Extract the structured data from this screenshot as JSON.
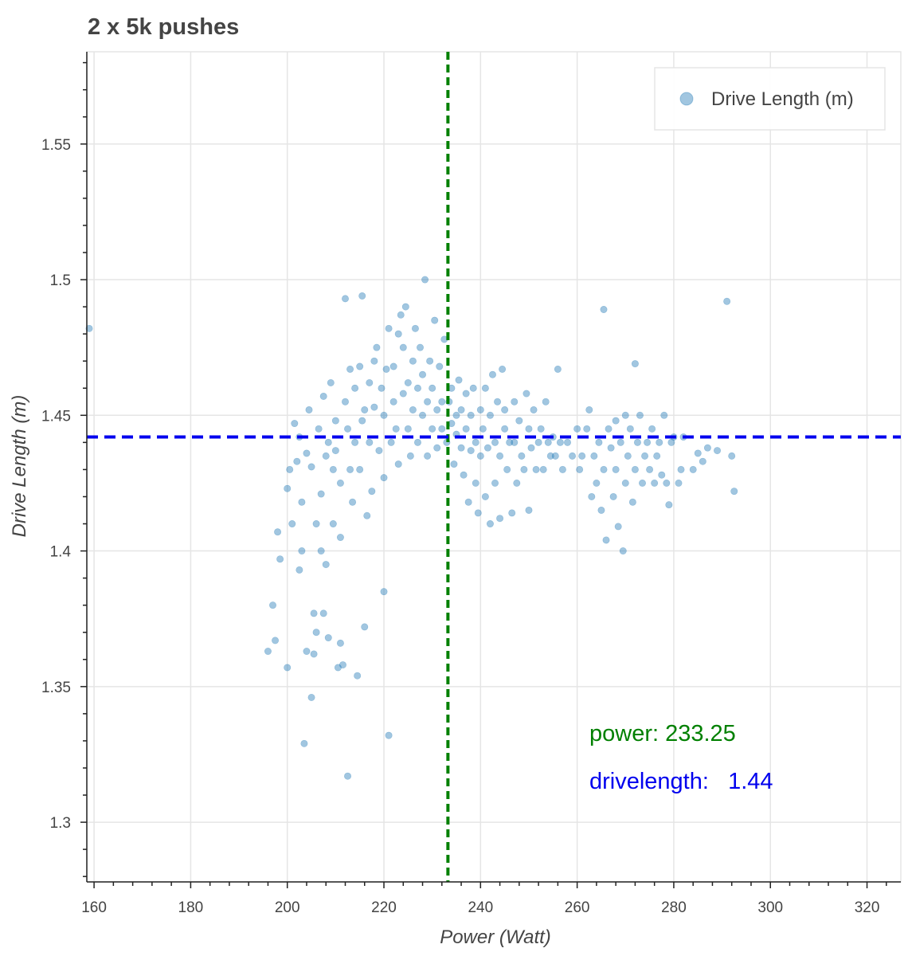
{
  "chart_data": {
    "type": "scatter",
    "title": "2 x 5k pushes",
    "xlabel": "Power (Watt)",
    "ylabel": "Drive Length (m)",
    "xlim": [
      158.5,
      327
    ],
    "ylim": [
      1.278,
      1.584
    ],
    "x_ticks": [
      160,
      180,
      200,
      220,
      240,
      260,
      280,
      300,
      320
    ],
    "x_tick_labels": [
      "160",
      "180",
      "200",
      "220",
      "240",
      "260",
      "280",
      "300",
      "320"
    ],
    "y_ticks": [
      1.3,
      1.35,
      1.4,
      1.45,
      1.5,
      1.55
    ],
    "y_tick_labels": [
      "1.3",
      "1.35",
      "1.4",
      "1.45",
      "1.5",
      "1.55"
    ],
    "grid": true,
    "legend": {
      "position": "top-right",
      "entries": [
        "Drive Length (m)"
      ]
    },
    "colors": {
      "points": "#1f77b4",
      "vline": "#008000",
      "hline": "#0000ee"
    },
    "reference_lines": {
      "vertical_x": 233.25,
      "horizontal_y": 1.442
    },
    "annotations": {
      "power": "power: 233.25",
      "drivelength": "drivelength:   1.44"
    },
    "series": [
      {
        "name": "Drive Length (m)",
        "points": [
          [
            159,
            1.482
          ],
          [
            196,
            1.363
          ],
          [
            197,
            1.38
          ],
          [
            197.5,
            1.367
          ],
          [
            198,
            1.407
          ],
          [
            198.5,
            1.397
          ],
          [
            200,
            1.357
          ],
          [
            200,
            1.423
          ],
          [
            200.5,
            1.43
          ],
          [
            201,
            1.41
          ],
          [
            201.5,
            1.447
          ],
          [
            202,
            1.433
          ],
          [
            202.5,
            1.442
          ],
          [
            202.5,
            1.393
          ],
          [
            203,
            1.418
          ],
          [
            203,
            1.4
          ],
          [
            203.5,
            1.329
          ],
          [
            204,
            1.436
          ],
          [
            204,
            1.363
          ],
          [
            204.5,
            1.452
          ],
          [
            205,
            1.431
          ],
          [
            205,
            1.346
          ],
          [
            205.5,
            1.377
          ],
          [
            205.5,
            1.362
          ],
          [
            206,
            1.41
          ],
          [
            206,
            1.37
          ],
          [
            206.5,
            1.445
          ],
          [
            207,
            1.421
          ],
          [
            207,
            1.4
          ],
          [
            207.5,
            1.377
          ],
          [
            207.5,
            1.457
          ],
          [
            208,
            1.435
          ],
          [
            208,
            1.395
          ],
          [
            208.5,
            1.44
          ],
          [
            208.5,
            1.368
          ],
          [
            209,
            1.462
          ],
          [
            209.5,
            1.43
          ],
          [
            209.5,
            1.41
          ],
          [
            210,
            1.437
          ],
          [
            210,
            1.448
          ],
          [
            210.5,
            1.357
          ],
          [
            211,
            1.425
          ],
          [
            211,
            1.405
          ],
          [
            211,
            1.366
          ],
          [
            211.5,
            1.358
          ],
          [
            212,
            1.493
          ],
          [
            212,
            1.455
          ],
          [
            212.5,
            1.317
          ],
          [
            212.5,
            1.445
          ],
          [
            213,
            1.467
          ],
          [
            213,
            1.43
          ],
          [
            213.5,
            1.418
          ],
          [
            214,
            1.44
          ],
          [
            214,
            1.46
          ],
          [
            214.5,
            1.354
          ],
          [
            215,
            1.468
          ],
          [
            215,
            1.43
          ],
          [
            215.5,
            1.448
          ],
          [
            215.5,
            1.494
          ],
          [
            216,
            1.372
          ],
          [
            216,
            1.452
          ],
          [
            216.5,
            1.413
          ],
          [
            217,
            1.462
          ],
          [
            217,
            1.44
          ],
          [
            217.5,
            1.422
          ],
          [
            218,
            1.453
          ],
          [
            218,
            1.47
          ],
          [
            218.5,
            1.475
          ],
          [
            219,
            1.437
          ],
          [
            219.5,
            1.46
          ],
          [
            220,
            1.385
          ],
          [
            220,
            1.427
          ],
          [
            220,
            1.45
          ],
          [
            220.5,
            1.467
          ],
          [
            221,
            1.332
          ],
          [
            221,
            1.482
          ],
          [
            221.5,
            1.44
          ],
          [
            222,
            1.455
          ],
          [
            222,
            1.468
          ],
          [
            222.5,
            1.445
          ],
          [
            223,
            1.48
          ],
          [
            223,
            1.432
          ],
          [
            223.5,
            1.487
          ],
          [
            224,
            1.458
          ],
          [
            224,
            1.475
          ],
          [
            224.5,
            1.49
          ],
          [
            225,
            1.445
          ],
          [
            225,
            1.462
          ],
          [
            225.5,
            1.435
          ],
          [
            226,
            1.47
          ],
          [
            226,
            1.452
          ],
          [
            226.5,
            1.482
          ],
          [
            227,
            1.46
          ],
          [
            227,
            1.44
          ],
          [
            227.5,
            1.475
          ],
          [
            228,
            1.45
          ],
          [
            228,
            1.465
          ],
          [
            228.5,
            1.5
          ],
          [
            229,
            1.455
          ],
          [
            229,
            1.435
          ],
          [
            229.5,
            1.47
          ],
          [
            230,
            1.445
          ],
          [
            230,
            1.46
          ],
          [
            230.5,
            1.485
          ],
          [
            231,
            1.452
          ],
          [
            231,
            1.438
          ],
          [
            231.5,
            1.468
          ],
          [
            232,
            1.455
          ],
          [
            232,
            1.445
          ],
          [
            232.5,
            1.478
          ],
          [
            233,
            1.44
          ],
          [
            233.5,
            1.455
          ],
          [
            234,
            1.447
          ],
          [
            234,
            1.46
          ],
          [
            234.5,
            1.432
          ],
          [
            235,
            1.45
          ],
          [
            235,
            1.443
          ],
          [
            235.5,
            1.463
          ],
          [
            236,
            1.438
          ],
          [
            236,
            1.452
          ],
          [
            236.5,
            1.428
          ],
          [
            237,
            1.445
          ],
          [
            237,
            1.458
          ],
          [
            237.5,
            1.418
          ],
          [
            238,
            1.437
          ],
          [
            238,
            1.45
          ],
          [
            238.5,
            1.46
          ],
          [
            239,
            1.425
          ],
          [
            239,
            1.44
          ],
          [
            239.5,
            1.414
          ],
          [
            240,
            1.452
          ],
          [
            240,
            1.435
          ],
          [
            240.5,
            1.445
          ],
          [
            241,
            1.46
          ],
          [
            241,
            1.42
          ],
          [
            241.5,
            1.438
          ],
          [
            242,
            1.45
          ],
          [
            242,
            1.41
          ],
          [
            242.5,
            1.465
          ],
          [
            243,
            1.44
          ],
          [
            243,
            1.425
          ],
          [
            243.5,
            1.455
          ],
          [
            244,
            1.412
          ],
          [
            244,
            1.435
          ],
          [
            244.5,
            1.467
          ],
          [
            245,
            1.445
          ],
          [
            245,
            1.452
          ],
          [
            245.5,
            1.43
          ],
          [
            246,
            1.44
          ],
          [
            246.5,
            1.414
          ],
          [
            247,
            1.455
          ],
          [
            247,
            1.44
          ],
          [
            247.5,
            1.425
          ],
          [
            248,
            1.448
          ],
          [
            248.5,
            1.435
          ],
          [
            249,
            1.43
          ],
          [
            249.5,
            1.458
          ],
          [
            250,
            1.445
          ],
          [
            250,
            1.415
          ],
          [
            250.5,
            1.438
          ],
          [
            251,
            1.452
          ],
          [
            251.5,
            1.43
          ],
          [
            252,
            1.44
          ],
          [
            252.5,
            1.445
          ],
          [
            253,
            1.43
          ],
          [
            253.5,
            1.455
          ],
          [
            254,
            1.44
          ],
          [
            254.5,
            1.435
          ],
          [
            255,
            1.442
          ],
          [
            255.5,
            1.435
          ],
          [
            256,
            1.467
          ],
          [
            256.5,
            1.44
          ],
          [
            257,
            1.43
          ],
          [
            258,
            1.44
          ],
          [
            259,
            1.435
          ],
          [
            260,
            1.445
          ],
          [
            260.5,
            1.43
          ],
          [
            261,
            1.435
          ],
          [
            262,
            1.445
          ],
          [
            262.5,
            1.452
          ],
          [
            263,
            1.42
          ],
          [
            263.5,
            1.435
          ],
          [
            264,
            1.425
          ],
          [
            264.5,
            1.44
          ],
          [
            265,
            1.415
          ],
          [
            265.5,
            1.489
          ],
          [
            265.5,
            1.43
          ],
          [
            266,
            1.404
          ],
          [
            266.5,
            1.445
          ],
          [
            267,
            1.438
          ],
          [
            267.5,
            1.42
          ],
          [
            268,
            1.448
          ],
          [
            268,
            1.43
          ],
          [
            268.5,
            1.409
          ],
          [
            269,
            1.44
          ],
          [
            269.5,
            1.4
          ],
          [
            270,
            1.45
          ],
          [
            270,
            1.425
          ],
          [
            270.5,
            1.435
          ],
          [
            271,
            1.445
          ],
          [
            271.5,
            1.418
          ],
          [
            272,
            1.469
          ],
          [
            272,
            1.43
          ],
          [
            272.5,
            1.44
          ],
          [
            273,
            1.45
          ],
          [
            273.5,
            1.425
          ],
          [
            274,
            1.435
          ],
          [
            274.5,
            1.44
          ],
          [
            275,
            1.43
          ],
          [
            275.5,
            1.445
          ],
          [
            276,
            1.425
          ],
          [
            276.5,
            1.435
          ],
          [
            277,
            1.44
          ],
          [
            277.5,
            1.428
          ],
          [
            278,
            1.45
          ],
          [
            278.5,
            1.425
          ],
          [
            279,
            1.417
          ],
          [
            279.5,
            1.44
          ],
          [
            280,
            1.442
          ],
          [
            281,
            1.425
          ],
          [
            281.5,
            1.43
          ],
          [
            282,
            1.442
          ],
          [
            284,
            1.43
          ],
          [
            285,
            1.436
          ],
          [
            286,
            1.433
          ],
          [
            287,
            1.438
          ],
          [
            289,
            1.437
          ],
          [
            291,
            1.492
          ],
          [
            292,
            1.435
          ],
          [
            292.5,
            1.422
          ]
        ]
      }
    ]
  }
}
